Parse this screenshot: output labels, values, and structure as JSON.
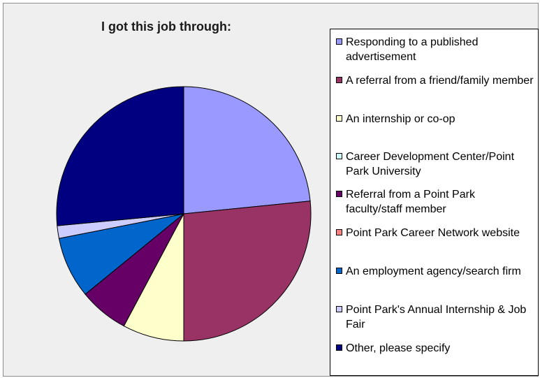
{
  "chart_data": {
    "type": "pie",
    "title": "I got this job through:",
    "legend_position": "right",
    "series": [
      {
        "label": "Responding to a published advertisement",
        "value": 23.4,
        "color": "#9999ff"
      },
      {
        "label": "A referral from a friend/family member",
        "value": 26.6,
        "color": "#993366"
      },
      {
        "label": "An internship or co-op",
        "value": 7.8,
        "color": "#ffffcc"
      },
      {
        "label": "Career Development Center/Point Park University",
        "value": 0,
        "color": "#ccffff"
      },
      {
        "label": "Referral from a Point Park faculty/staff member",
        "value": 6.3,
        "color": "#660066"
      },
      {
        "label": "Point Park Career Network website",
        "value": 0,
        "color": "#ff8080"
      },
      {
        "label": "An employment agency/search firm",
        "value": 7.8,
        "color": "#0066cc"
      },
      {
        "label": "Point Park's Annual Internship & Job Fair",
        "value": 1.6,
        "color": "#ccccff"
      },
      {
        "label": "Other, please specify",
        "value": 26.5,
        "color": "#000080"
      }
    ]
  }
}
